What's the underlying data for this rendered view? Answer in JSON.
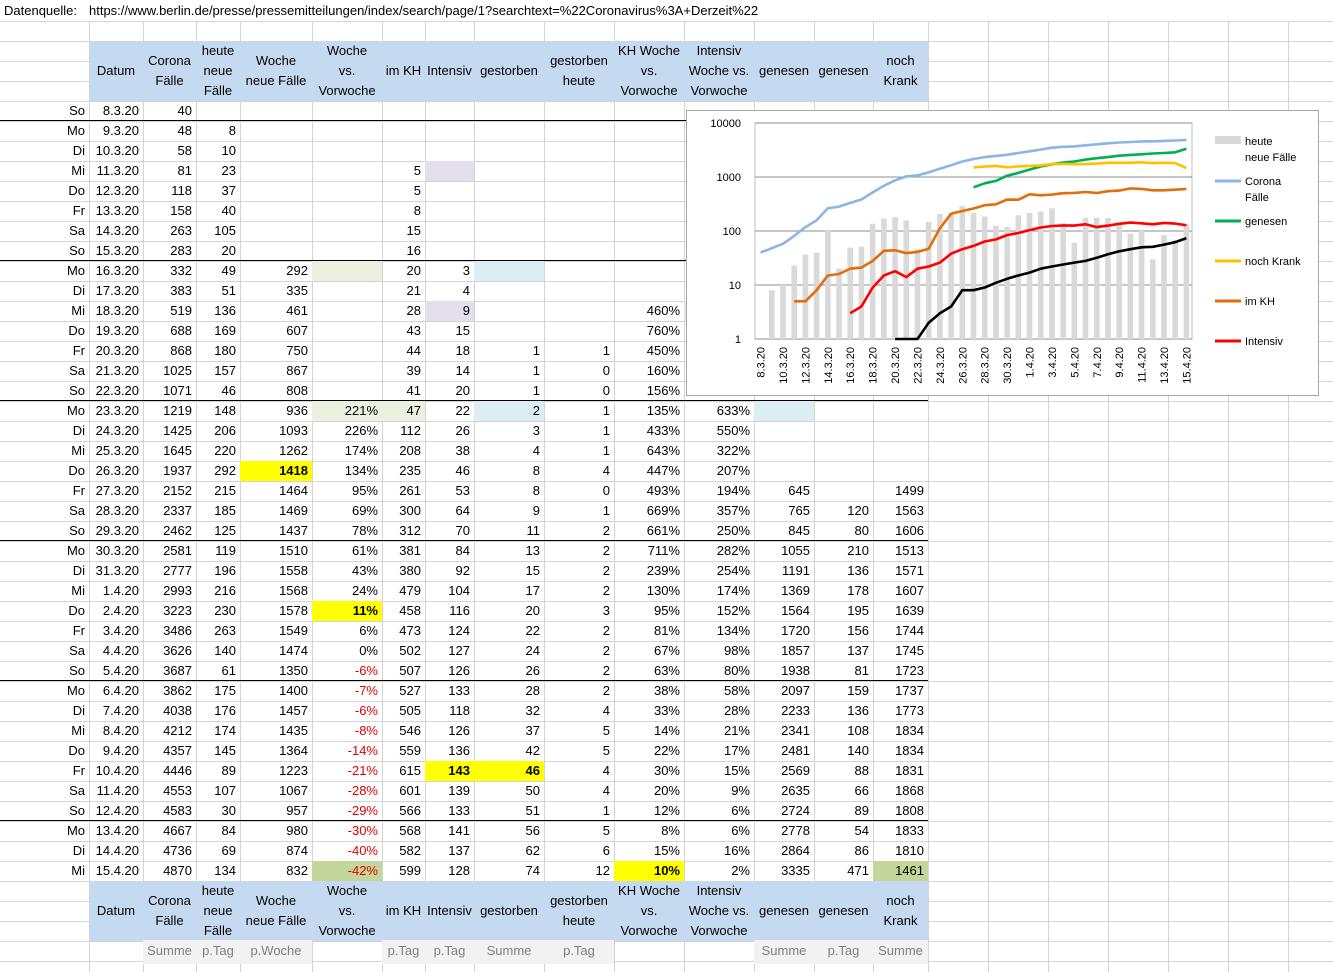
{
  "source": {
    "label": "Datenquelle:",
    "url": "https://www.berlin.de/presse/pressemitteilungen/index/search/page/1?searchtext=%22Coronavirus%3A+Derzeit%22"
  },
  "header": [
    "Datum",
    "Corona\nFälle",
    "heute\nneue\nFälle",
    "Woche\nneue Fälle",
    "Woche\nvs.\nVorwoche",
    "im KH",
    "Intensiv",
    "gestorben",
    "gestorben\nheute",
    "KH Woche\nvs.\nVorwoche",
    "Intensiv\nWoche vs.\nVorwoche",
    "genesen",
    "genesen",
    "noch\nKrank"
  ],
  "footer": [
    "",
    "Summe",
    "p.Tag",
    "p.Woche",
    "",
    "p.Tag",
    "p.Tag",
    "Summe",
    "p.Tag",
    "",
    "",
    "Summe",
    "p.Tag",
    "Summe"
  ],
  "rows": [
    [
      "So",
      "8.3.20",
      "40",
      "",
      "",
      "",
      "",
      "",
      "",
      "",
      "",
      "",
      "",
      "",
      ""
    ],
    [
      "Mo",
      "9.3.20",
      "48",
      "8",
      "",
      "",
      "",
      "",
      "",
      "",
      "",
      "",
      "",
      "",
      ""
    ],
    [
      "Di",
      "10.3.20",
      "58",
      "10",
      "",
      "",
      "",
      "",
      "",
      "",
      "",
      "",
      "",
      "",
      ""
    ],
    [
      "Mi",
      "11.3.20",
      "81",
      "23",
      "",
      "",
      "5",
      "",
      "",
      "",
      "",
      "",
      "",
      "",
      ""
    ],
    [
      "Do",
      "12.3.20",
      "118",
      "37",
      "",
      "",
      "5",
      "",
      "",
      "",
      "",
      "",
      "",
      "",
      ""
    ],
    [
      "Fr",
      "13.3.20",
      "158",
      "40",
      "",
      "",
      "8",
      "",
      "",
      "",
      "",
      "",
      "",
      "",
      ""
    ],
    [
      "Sa",
      "14.3.20",
      "263",
      "105",
      "",
      "",
      "15",
      "",
      "",
      "",
      "",
      "",
      "",
      "",
      ""
    ],
    [
      "So",
      "15.3.20",
      "283",
      "20",
      "",
      "",
      "16",
      "",
      "",
      "",
      "",
      "",
      "",
      "",
      ""
    ],
    [
      "Mo",
      "16.3.20",
      "332",
      "49",
      "292",
      "",
      "20",
      "3",
      "",
      "",
      "",
      "",
      "",
      "",
      ""
    ],
    [
      "Di",
      "17.3.20",
      "383",
      "51",
      "335",
      "",
      "21",
      "4",
      "",
      "",
      "",
      "",
      "",
      "",
      ""
    ],
    [
      "Mi",
      "18.3.20",
      "519",
      "136",
      "461",
      "",
      "28",
      "9",
      "",
      "",
      "460%",
      "",
      "",
      "",
      ""
    ],
    [
      "Do",
      "19.3.20",
      "688",
      "169",
      "607",
      "",
      "43",
      "15",
      "",
      "",
      "760%",
      "",
      "",
      "",
      ""
    ],
    [
      "Fr",
      "20.3.20",
      "868",
      "180",
      "750",
      "",
      "44",
      "18",
      "1",
      "1",
      "450%",
      "",
      "",
      "",
      ""
    ],
    [
      "Sa",
      "21.3.20",
      "1025",
      "157",
      "867",
      "",
      "39",
      "14",
      "1",
      "0",
      "160%",
      "",
      "",
      "",
      ""
    ],
    [
      "So",
      "22.3.20",
      "1071",
      "46",
      "808",
      "",
      "41",
      "20",
      "1",
      "0",
      "156%",
      "",
      "",
      "",
      ""
    ],
    [
      "Mo",
      "23.3.20",
      "1219",
      "148",
      "936",
      "221%",
      "47",
      "22",
      "2",
      "1",
      "135%",
      "633%",
      "",
      "",
      ""
    ],
    [
      "Di",
      "24.3.20",
      "1425",
      "206",
      "1093",
      "226%",
      "112",
      "26",
      "3",
      "1",
      "433%",
      "550%",
      "",
      "",
      ""
    ],
    [
      "Mi",
      "25.3.20",
      "1645",
      "220",
      "1262",
      "174%",
      "208",
      "38",
      "4",
      "1",
      "643%",
      "322%",
      "",
      "",
      ""
    ],
    [
      "Do",
      "26.3.20",
      "1937",
      "292",
      "1418",
      "134%",
      "235",
      "46",
      "8",
      "4",
      "447%",
      "207%",
      "",
      "",
      ""
    ],
    [
      "Fr",
      "27.3.20",
      "2152",
      "215",
      "1464",
      "95%",
      "261",
      "53",
      "8",
      "0",
      "493%",
      "194%",
      "645",
      "",
      "1499"
    ],
    [
      "Sa",
      "28.3.20",
      "2337",
      "185",
      "1469",
      "69%",
      "300",
      "64",
      "9",
      "1",
      "669%",
      "357%",
      "765",
      "120",
      "1563"
    ],
    [
      "So",
      "29.3.20",
      "2462",
      "125",
      "1437",
      "78%",
      "312",
      "70",
      "11",
      "2",
      "661%",
      "250%",
      "845",
      "80",
      "1606"
    ],
    [
      "Mo",
      "30.3.20",
      "2581",
      "119",
      "1510",
      "61%",
      "381",
      "84",
      "13",
      "2",
      "711%",
      "282%",
      "1055",
      "210",
      "1513"
    ],
    [
      "Di",
      "31.3.20",
      "2777",
      "196",
      "1558",
      "43%",
      "380",
      "92",
      "15",
      "2",
      "239%",
      "254%",
      "1191",
      "136",
      "1571"
    ],
    [
      "Mi",
      "1.4.20",
      "2993",
      "216",
      "1568",
      "24%",
      "479",
      "104",
      "17",
      "2",
      "130%",
      "174%",
      "1369",
      "178",
      "1607"
    ],
    [
      "Do",
      "2.4.20",
      "3223",
      "230",
      "1578",
      "11%",
      "458",
      "116",
      "20",
      "3",
      "95%",
      "152%",
      "1564",
      "195",
      "1639"
    ],
    [
      "Fr",
      "3.4.20",
      "3486",
      "263",
      "1549",
      "6%",
      "473",
      "124",
      "22",
      "2",
      "81%",
      "134%",
      "1720",
      "156",
      "1744"
    ],
    [
      "Sa",
      "4.4.20",
      "3626",
      "140",
      "1474",
      "0%",
      "502",
      "127",
      "24",
      "2",
      "67%",
      "98%",
      "1857",
      "137",
      "1745"
    ],
    [
      "So",
      "5.4.20",
      "3687",
      "61",
      "1350",
      "-6%",
      "507",
      "126",
      "26",
      "2",
      "63%",
      "80%",
      "1938",
      "81",
      "1723"
    ],
    [
      "Mo",
      "6.4.20",
      "3862",
      "175",
      "1400",
      "-7%",
      "527",
      "133",
      "28",
      "2",
      "38%",
      "58%",
      "2097",
      "159",
      "1737"
    ],
    [
      "Di",
      "7.4.20",
      "4038",
      "176",
      "1457",
      "-6%",
      "505",
      "118",
      "32",
      "4",
      "33%",
      "28%",
      "2233",
      "136",
      "1773"
    ],
    [
      "Mi",
      "8.4.20",
      "4212",
      "174",
      "1435",
      "-8%",
      "546",
      "126",
      "37",
      "5",
      "14%",
      "21%",
      "2341",
      "108",
      "1834"
    ],
    [
      "Do",
      "9.4.20",
      "4357",
      "145",
      "1364",
      "-14%",
      "559",
      "136",
      "42",
      "5",
      "22%",
      "17%",
      "2481",
      "140",
      "1834"
    ],
    [
      "Fr",
      "10.4.20",
      "4446",
      "89",
      "1223",
      "-21%",
      "615",
      "143",
      "46",
      "4",
      "30%",
      "15%",
      "2569",
      "88",
      "1831"
    ],
    [
      "Sa",
      "11.4.20",
      "4553",
      "107",
      "1067",
      "-28%",
      "601",
      "139",
      "50",
      "4",
      "20%",
      "9%",
      "2635",
      "66",
      "1868"
    ],
    [
      "So",
      "12.4.20",
      "4583",
      "30",
      "957",
      "-29%",
      "566",
      "133",
      "51",
      "1",
      "12%",
      "6%",
      "2724",
      "89",
      "1808"
    ],
    [
      "Mo",
      "13.4.20",
      "4667",
      "84",
      "980",
      "-30%",
      "568",
      "141",
      "56",
      "5",
      "8%",
      "6%",
      "2778",
      "54",
      "1833"
    ],
    [
      "Di",
      "14.4.20",
      "4736",
      "69",
      "874",
      "-40%",
      "582",
      "137",
      "62",
      "6",
      "15%",
      "16%",
      "2864",
      "86",
      "1810"
    ],
    [
      "Mi",
      "15.4.20",
      "4870",
      "134",
      "832",
      "-42%",
      "599",
      "128",
      "74",
      "12",
      "10%",
      "2%",
      "3335",
      "471",
      "1461"
    ]
  ],
  "highlights": {
    "yellow": "#ffff00",
    "light_green": "#ebf1de",
    "green": "#c4d79b",
    "lavender": "#e4dfec",
    "light_blue": "#dbeef4",
    "header_blue": "#c5d9f1",
    "negative": "#e00000"
  },
  "chart_data": {
    "type": "line",
    "y_scale": "log",
    "ylim": [
      1,
      10000
    ],
    "yticks": [
      "10000",
      "1000",
      "100",
      "10",
      "1"
    ],
    "x": [
      "8.3.20",
      "9.3.20",
      "10.3.20",
      "11.3.20",
      "12.3.20",
      "13.3.20",
      "14.3.20",
      "15.3.20",
      "16.3.20",
      "17.3.20",
      "18.3.20",
      "19.3.20",
      "20.3.20",
      "21.3.20",
      "22.3.20",
      "23.3.20",
      "24.3.20",
      "25.3.20",
      "26.3.20",
      "27.3.20",
      "28.3.20",
      "29.3.20",
      "30.3.20",
      "31.3.20",
      "1.4.20",
      "2.4.20",
      "3.4.20",
      "4.4.20",
      "5.4.20",
      "6.4.20",
      "7.4.20",
      "8.4.20",
      "9.4.20",
      "10.4.20",
      "11.4.20",
      "12.4.20",
      "13.4.20",
      "14.4.20",
      "15.4.20"
    ],
    "xtick_labels": [
      "8.3.20",
      "10.3.20",
      "12.3.20",
      "14.3.20",
      "16.3.20",
      "18.3.20",
      "20.3.20",
      "22.3.20",
      "24.3.20",
      "26.3.20",
      "28.3.20",
      "30.3.20",
      "1.4.20",
      "3.4.20",
      "5.4.20",
      "7.4.20",
      "9.4.20",
      "11.4.20",
      "13.4.20",
      "15.4.20"
    ],
    "series": [
      {
        "name": "heute\nneue Fälle",
        "kind": "bar",
        "color": "#d9d9d9",
        "values": [
          null,
          8,
          10,
          23,
          37,
          40,
          105,
          20,
          49,
          51,
          136,
          169,
          180,
          157,
          46,
          148,
          206,
          220,
          292,
          215,
          185,
          125,
          119,
          196,
          216,
          230,
          263,
          140,
          61,
          175,
          176,
          174,
          145,
          89,
          107,
          30,
          84,
          69,
          134
        ]
      },
      {
        "name": "Corona\nFälle",
        "kind": "line",
        "color": "#8eb4e3",
        "values": [
          40,
          48,
          58,
          81,
          118,
          158,
          263,
          283,
          332,
          383,
          519,
          688,
          868,
          1025,
          1071,
          1219,
          1425,
          1645,
          1937,
          2152,
          2337,
          2462,
          2581,
          2777,
          2993,
          3223,
          3486,
          3626,
          3687,
          3862,
          4038,
          4212,
          4357,
          4446,
          4553,
          4583,
          4667,
          4736,
          4870
        ]
      },
      {
        "name": "genesen",
        "kind": "line",
        "color": "#00b050",
        "values": [
          null,
          null,
          null,
          null,
          null,
          null,
          null,
          null,
          null,
          null,
          null,
          null,
          null,
          null,
          null,
          null,
          null,
          null,
          null,
          645,
          765,
          845,
          1055,
          1191,
          1369,
          1564,
          1720,
          1857,
          1938,
          2097,
          2233,
          2341,
          2481,
          2569,
          2635,
          2724,
          2778,
          2864,
          3335
        ]
      },
      {
        "name": "noch Krank",
        "kind": "line",
        "color": "#ffc000",
        "values": [
          null,
          null,
          null,
          null,
          null,
          null,
          null,
          null,
          null,
          null,
          null,
          null,
          null,
          null,
          null,
          null,
          null,
          null,
          null,
          1499,
          1563,
          1606,
          1513,
          1571,
          1607,
          1639,
          1744,
          1745,
          1723,
          1737,
          1773,
          1834,
          1834,
          1831,
          1868,
          1808,
          1833,
          1810,
          1461
        ]
      },
      {
        "name": "im KH",
        "kind": "line",
        "color": "#e46c0a",
        "values": [
          null,
          null,
          null,
          5,
          5,
          8,
          15,
          16,
          20,
          21,
          28,
          43,
          44,
          39,
          41,
          47,
          112,
          208,
          235,
          261,
          300,
          312,
          381,
          380,
          479,
          458,
          473,
          502,
          507,
          527,
          505,
          546,
          559,
          615,
          601,
          566,
          568,
          582,
          599
        ]
      },
      {
        "name": "Intensiv",
        "kind": "line",
        "color": "#ff0000",
        "values": [
          null,
          null,
          null,
          null,
          null,
          null,
          null,
          null,
          3,
          4,
          9,
          15,
          18,
          14,
          20,
          22,
          26,
          38,
          46,
          53,
          64,
          70,
          84,
          92,
          104,
          116,
          124,
          127,
          126,
          133,
          118,
          126,
          136,
          143,
          139,
          133,
          141,
          137,
          128
        ]
      },
      {
        "name": "",
        "kind": "line",
        "color": "#000000",
        "values": [
          null,
          null,
          null,
          null,
          null,
          null,
          null,
          null,
          null,
          null,
          null,
          null,
          1,
          1,
          1,
          2,
          3,
          4,
          8,
          8,
          9,
          11,
          13,
          15,
          17,
          20,
          22,
          24,
          26,
          28,
          32,
          37,
          42,
          46,
          50,
          51,
          56,
          62,
          74
        ]
      }
    ]
  }
}
